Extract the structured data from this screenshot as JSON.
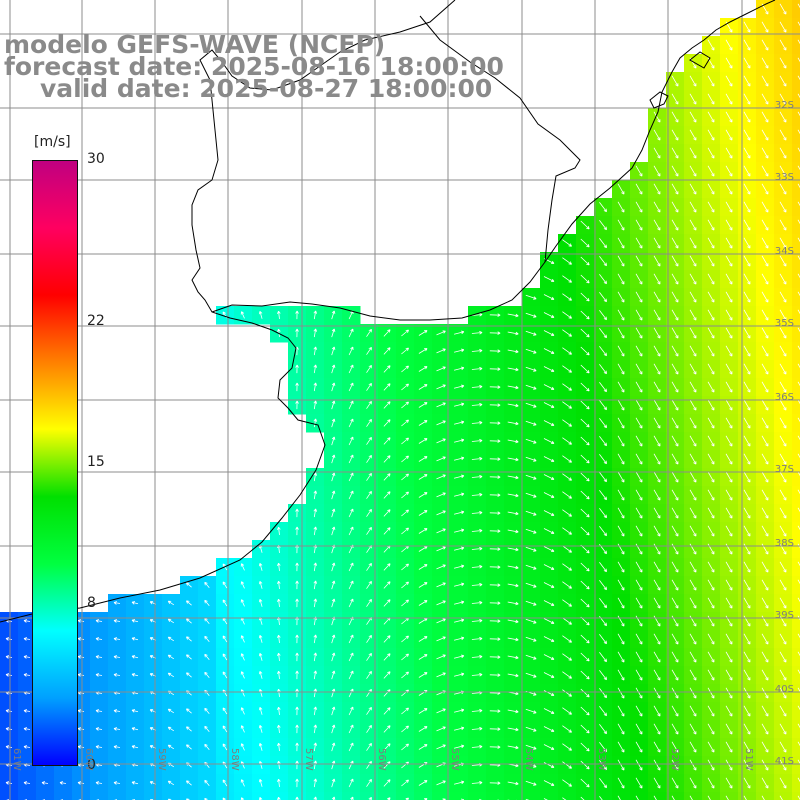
{
  "title": {
    "line1": "modelo GEFS-WAVE (NCEP)",
    "line2": "forecast date: 2025-08-16 18:00:00",
    "line3": "valid date: 2025-08-27 18:00:00"
  },
  "colorbar": {
    "unit": "[m/s]",
    "ticks": [
      "30",
      "22",
      "15",
      "8",
      "0"
    ],
    "tick_values": [
      30,
      22,
      15,
      8,
      0
    ],
    "min": 0,
    "max": 30,
    "colors": [
      "#0000ff",
      "#00a0ff",
      "#00ffff",
      "#00ff40",
      "#00e000",
      "#ffff00",
      "#ff8000",
      "#ff0000",
      "#ff0060",
      "#c00080"
    ]
  },
  "lat_labels": [
    "32S",
    "33S",
    "34S",
    "35S",
    "36S",
    "37S",
    "38S",
    "39S",
    "40S",
    "41S"
  ],
  "lon_labels": [
    "61W",
    "60W",
    "59W",
    "58W",
    "57W",
    "56W",
    "55W",
    "54W",
    "53W",
    "52W",
    "51W"
  ],
  "colors": {
    "land": "#ffffff",
    "coastline": "#000000",
    "grid": "#8c8c8c",
    "arrows": "#ffffff",
    "title": "#8a8a8a"
  }
}
